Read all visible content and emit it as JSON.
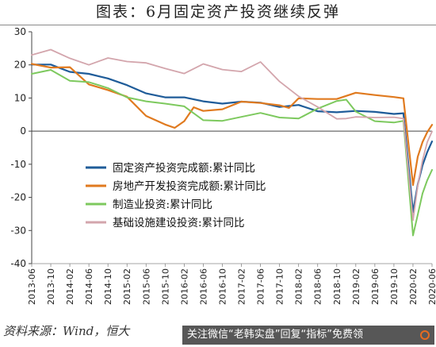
{
  "title": "图表：6月固定资产投资继续反弹",
  "source": "资料来源：Wind，恒大",
  "watermark": "关注微信“老韩实盘”回复“指标”免费领",
  "chart_data": {
    "type": "line",
    "ylim": [
      -40,
      30
    ],
    "yticks": [
      -40,
      -30,
      -20,
      -10,
      0,
      10,
      20,
      30
    ],
    "xtick_labels": [
      "2013-06",
      "2013-10",
      "2014-02",
      "2014-06",
      "2014-10",
      "2015-02",
      "2015-06",
      "2015-10",
      "2016-02",
      "2016-06",
      "2016-10",
      "2017-02",
      "2017-06",
      "2017-10",
      "2018-02",
      "2018-06",
      "2018-10",
      "2019-02",
      "2019-06",
      "2019-10",
      "2020-02",
      "2020-06"
    ],
    "x_start": "2013-06",
    "x_end": "2020-06",
    "grid": false,
    "legend_position": "center-right",
    "series": [
      {
        "name": "固定资产投资完成额:累计同比",
        "color": "#1f5c99",
        "width": 2.2,
        "points": [
          [
            "2013-06",
            20.1
          ],
          [
            "2013-10",
            20.1
          ],
          [
            "2014-02",
            17.9
          ],
          [
            "2014-06",
            17.3
          ],
          [
            "2014-10",
            15.9
          ],
          [
            "2015-02",
            13.9
          ],
          [
            "2015-06",
            11.4
          ],
          [
            "2015-10",
            10.2
          ],
          [
            "2016-02",
            10.2
          ],
          [
            "2016-06",
            9.0
          ],
          [
            "2016-10",
            8.3
          ],
          [
            "2017-02",
            8.9
          ],
          [
            "2017-06",
            8.6
          ],
          [
            "2017-10",
            7.3
          ],
          [
            "2018-02",
            7.9
          ],
          [
            "2018-06",
            6.0
          ],
          [
            "2018-10",
            5.7
          ],
          [
            "2019-02",
            6.1
          ],
          [
            "2019-06",
            5.8
          ],
          [
            "2019-10",
            5.2
          ],
          [
            "2019-12",
            5.4
          ],
          [
            "2020-02",
            -24.5
          ],
          [
            "2020-03",
            -16.1
          ],
          [
            "2020-04",
            -10.3
          ],
          [
            "2020-05",
            -6.3
          ],
          [
            "2020-06",
            -3.1
          ]
        ]
      },
      {
        "name": "房地产开发投资完成额:累计同比",
        "color": "#e07a1f",
        "width": 2.2,
        "points": [
          [
            "2013-06",
            20.3
          ],
          [
            "2013-10",
            19.2
          ],
          [
            "2014-02",
            19.3
          ],
          [
            "2014-06",
            14.1
          ],
          [
            "2014-10",
            12.4
          ],
          [
            "2015-02",
            10.4
          ],
          [
            "2015-06",
            4.6
          ],
          [
            "2015-10",
            2.0
          ],
          [
            "2015-12",
            1.0
          ],
          [
            "2016-02",
            3.0
          ],
          [
            "2016-04",
            7.2
          ],
          [
            "2016-06",
            6.1
          ],
          [
            "2016-10",
            6.6
          ],
          [
            "2017-02",
            8.9
          ],
          [
            "2017-06",
            8.5
          ],
          [
            "2017-10",
            7.8
          ],
          [
            "2017-12",
            7.0
          ],
          [
            "2018-02",
            9.9
          ],
          [
            "2018-06",
            9.7
          ],
          [
            "2018-10",
            9.7
          ],
          [
            "2019-02",
            11.6
          ],
          [
            "2019-06",
            10.9
          ],
          [
            "2019-10",
            10.3
          ],
          [
            "2019-12",
            9.9
          ],
          [
            "2020-02",
            -16.3
          ],
          [
            "2020-03",
            -7.7
          ],
          [
            "2020-04",
            -3.3
          ],
          [
            "2020-05",
            -0.3
          ],
          [
            "2020-06",
            1.9
          ]
        ]
      },
      {
        "name": "制造业投资:累计同比",
        "color": "#7dc95e",
        "width": 2.0,
        "points": [
          [
            "2013-06",
            17.3
          ],
          [
            "2013-10",
            18.5
          ],
          [
            "2014-02",
            15.2
          ],
          [
            "2014-06",
            14.8
          ],
          [
            "2014-10",
            13.0
          ],
          [
            "2015-02",
            10.2
          ],
          [
            "2015-06",
            9.0
          ],
          [
            "2015-10",
            8.3
          ],
          [
            "2016-02",
            7.5
          ],
          [
            "2016-06",
            3.3
          ],
          [
            "2016-10",
            3.1
          ],
          [
            "2017-02",
            4.3
          ],
          [
            "2017-06",
            5.5
          ],
          [
            "2017-10",
            4.1
          ],
          [
            "2018-02",
            3.8
          ],
          [
            "2018-06",
            6.8
          ],
          [
            "2018-10",
            9.1
          ],
          [
            "2018-12",
            9.5
          ],
          [
            "2019-02",
            5.9
          ],
          [
            "2019-06",
            3.0
          ],
          [
            "2019-10",
            2.6
          ],
          [
            "2019-12",
            3.1
          ],
          [
            "2020-02",
            -31.5
          ],
          [
            "2020-03",
            -25.2
          ],
          [
            "2020-04",
            -18.8
          ],
          [
            "2020-05",
            -14.8
          ],
          [
            "2020-06",
            -11.7
          ]
        ]
      },
      {
        "name": "基础设施建设投资:累计同比",
        "color": "#d3a5ac",
        "width": 1.8,
        "points": [
          [
            "2013-06",
            23.0
          ],
          [
            "2013-10",
            24.6
          ],
          [
            "2014-02",
            22.0
          ],
          [
            "2014-06",
            20.0
          ],
          [
            "2014-10",
            22.1
          ],
          [
            "2015-02",
            21.0
          ],
          [
            "2015-06",
            20.6
          ],
          [
            "2015-10",
            18.9
          ],
          [
            "2016-02",
            17.4
          ],
          [
            "2016-06",
            20.3
          ],
          [
            "2016-10",
            18.6
          ],
          [
            "2017-02",
            18.0
          ],
          [
            "2017-06",
            20.9
          ],
          [
            "2017-10",
            15.0
          ],
          [
            "2018-02",
            10.5
          ],
          [
            "2018-06",
            7.3
          ],
          [
            "2018-10",
            3.7
          ],
          [
            "2018-12",
            3.8
          ],
          [
            "2019-02",
            4.3
          ],
          [
            "2019-06",
            4.1
          ],
          [
            "2019-10",
            4.2
          ],
          [
            "2019-12",
            3.8
          ],
          [
            "2020-02",
            -26.9
          ],
          [
            "2020-03",
            -16.4
          ],
          [
            "2020-04",
            -8.8
          ],
          [
            "2020-05",
            -3.3
          ],
          [
            "2020-06",
            -0.1
          ]
        ]
      }
    ]
  }
}
